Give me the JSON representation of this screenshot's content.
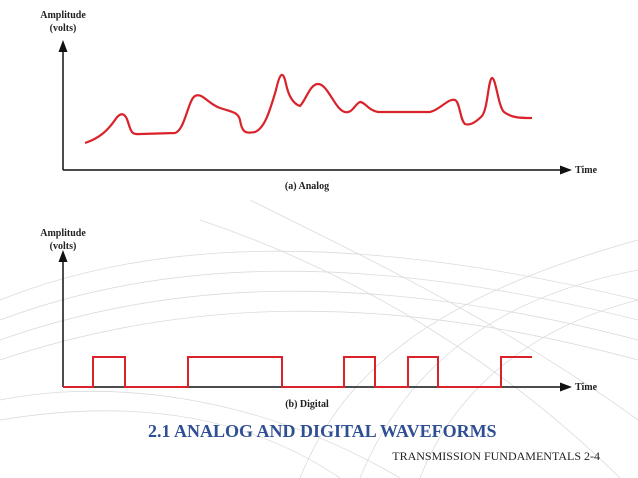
{
  "panel_a": {
    "y_label": [
      "Amplitude",
      "(volts)"
    ],
    "x_label": "Time",
    "caption": "(a) Analog"
  },
  "panel_b": {
    "y_label": [
      "Amplitude",
      "(volts)"
    ],
    "x_label": "Time",
    "caption": "(b) Digital"
  },
  "title": "2.1 ANALOG AND DIGITAL WAVEFORMS",
  "footer": "TRANSMISSION FUNDAMENTALS 2-4"
}
